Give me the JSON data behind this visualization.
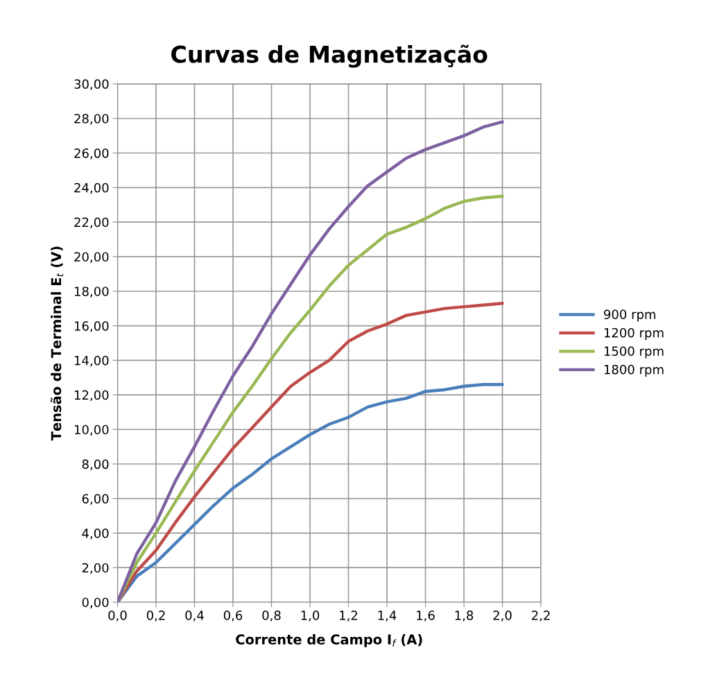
{
  "chart_data": {
    "type": "line",
    "title": "Curvas de Magnetização",
    "xlabel": "Corrente de Campo I$_{f}$ (A)",
    "ylabel": "Tensão de Terminal E$_{t}$ (V)",
    "x": [
      0,
      0.1,
      0.2,
      0.3,
      0.4,
      0.5,
      0.6,
      0.7,
      0.8,
      0.9,
      1.0,
      1.1,
      1.2,
      1.3,
      1.4,
      1.5,
      1.6,
      1.7,
      1.8,
      1.9,
      2.0
    ],
    "series": [
      {
        "name": "900 rpm",
        "color": "#4a7ebb",
        "values": [
          0,
          1.5,
          2.3,
          3.4,
          4.5,
          5.6,
          6.6,
          7.4,
          8.3,
          9.0,
          9.7,
          10.3,
          10.7,
          11.3,
          11.6,
          11.8,
          12.2,
          12.3,
          12.5,
          12.6,
          12.6
        ]
      },
      {
        "name": "1200 rpm",
        "color": "#be4b48",
        "values": [
          0,
          1.8,
          3.0,
          4.6,
          6.1,
          7.5,
          8.9,
          10.1,
          11.3,
          12.5,
          13.3,
          14.0,
          15.1,
          15.7,
          16.1,
          16.6,
          16.8,
          17.0,
          17.1,
          17.2,
          17.3
        ]
      },
      {
        "name": "1500 rpm",
        "color": "#98b954",
        "values": [
          0,
          2.3,
          4.0,
          5.8,
          7.6,
          9.3,
          11.0,
          12.5,
          14.1,
          15.6,
          16.9,
          18.3,
          19.5,
          20.4,
          21.3,
          21.7,
          22.2,
          22.8,
          23.2,
          23.4,
          23.5
        ]
      },
      {
        "name": "1800 rpm",
        "color": "#7d60a0",
        "values": [
          0,
          2.8,
          4.6,
          7.0,
          9.0,
          11.1,
          13.1,
          14.8,
          16.7,
          18.4,
          20.1,
          21.6,
          22.9,
          24.1,
          24.9,
          25.7,
          26.2,
          26.6,
          27.0,
          27.5,
          27.8
        ]
      }
    ],
    "xlim": [
      0,
      2.2
    ],
    "xticks": [
      {
        "value": 0,
        "label": "0,0"
      },
      {
        "value": 0.2,
        "label": "0,2"
      },
      {
        "value": 0.4,
        "label": "0,4"
      },
      {
        "value": 0.6,
        "label": "0,6"
      },
      {
        "value": 0.8,
        "label": "0,8"
      },
      {
        "value": 1.0,
        "label": "1,0"
      },
      {
        "value": 1.2,
        "label": "1,2"
      },
      {
        "value": 1.4,
        "label": "1,4"
      },
      {
        "value": 1.6,
        "label": "1,6"
      },
      {
        "value": 1.8,
        "label": "1,8"
      },
      {
        "value": 2.0,
        "label": "2,0"
      },
      {
        "value": 2.2,
        "label": "2,2"
      }
    ],
    "ylim": [
      0,
      30
    ],
    "yticks": [
      {
        "value": 0,
        "label": "0,00"
      },
      {
        "value": 2,
        "label": "2,00"
      },
      {
        "value": 4,
        "label": "4,00"
      },
      {
        "value": 6,
        "label": "6,00"
      },
      {
        "value": 8,
        "label": "8,00"
      },
      {
        "value": 10,
        "label": "10,00"
      },
      {
        "value": 12,
        "label": "12,00"
      },
      {
        "value": 14,
        "label": "14,00"
      },
      {
        "value": 16,
        "label": "16,00"
      },
      {
        "value": 18,
        "label": "18,00"
      },
      {
        "value": 20,
        "label": "20,00"
      },
      {
        "value": 22,
        "label": "22,00"
      },
      {
        "value": 24,
        "label": "24,00"
      },
      {
        "value": 26,
        "label": "26,00"
      },
      {
        "value": 28,
        "label": "28,00"
      },
      {
        "value": 30,
        "label": "30,00"
      }
    ],
    "grid": true,
    "legend": "right",
    "marker": "none",
    "line_style": "solid"
  }
}
